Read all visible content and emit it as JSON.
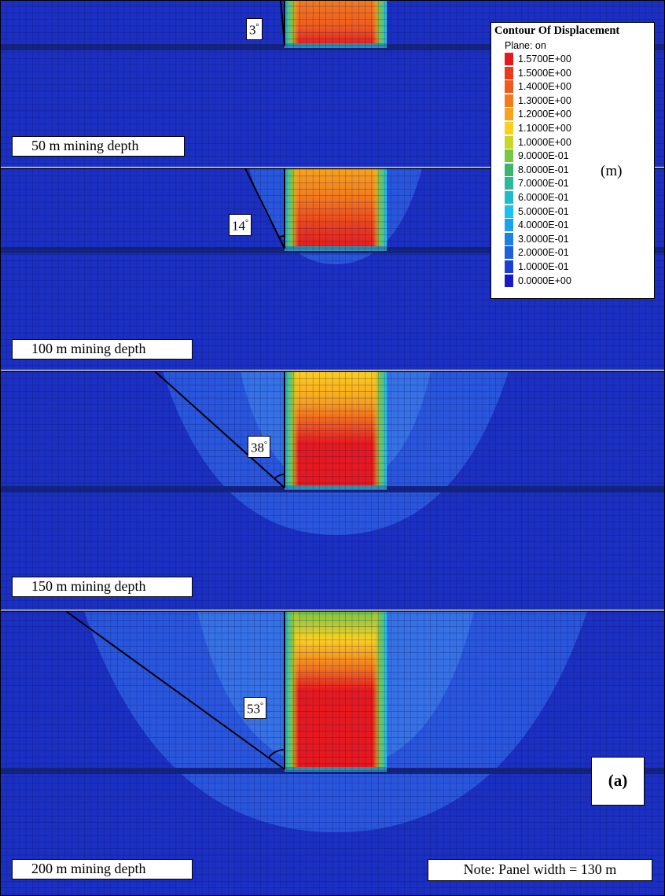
{
  "depth_labels": [
    "50 m mining depth",
    "100 m mining depth",
    "150 m mining depth",
    "200 m mining depth"
  ],
  "angle_labels": [
    "3",
    "14",
    "38",
    "53"
  ],
  "angle_unit": "°",
  "legend": {
    "title": "Contour Of Displacement",
    "plane": "Plane: on",
    "unit": "(m)",
    "entries": [
      {
        "label": "1.5700E+00",
        "color": "#e6191f"
      },
      {
        "label": "1.5000E+00",
        "color": "#ea3a1c"
      },
      {
        "label": "1.4000E+00",
        "color": "#ef5a1e"
      },
      {
        "label": "1.3000E+00",
        "color": "#f37b1e"
      },
      {
        "label": "1.2000E+00",
        "color": "#f7a41d"
      },
      {
        "label": "1.1000E+00",
        "color": "#fccf1f"
      },
      {
        "label": "1.0000E+00",
        "color": "#c8d82a"
      },
      {
        "label": "9.0000E-01",
        "color": "#79c644"
      },
      {
        "label": "8.0000E-01",
        "color": "#3db66d"
      },
      {
        "label": "7.0000E-01",
        "color": "#2bb99a"
      },
      {
        "label": "6.0000E-01",
        "color": "#1ebcc8"
      },
      {
        "label": "5.0000E-01",
        "color": "#19c2ee"
      },
      {
        "label": "4.0000E-01",
        "color": "#1aa3ec"
      },
      {
        "label": "3.0000E-01",
        "color": "#1f80e4"
      },
      {
        "label": "2.0000E-01",
        "color": "#1f5fd9"
      },
      {
        "label": "1.0000E-01",
        "color": "#1a3fd1"
      },
      {
        "label": "0.0000E+00",
        "color": "#1919c6"
      }
    ]
  },
  "panel_tag": "(a)",
  "note": "Note: Panel width = 130 m",
  "colors": {
    "background_blue": "#1b2fc2",
    "mesh_line": "#0b1460",
    "bright_blue": "#2f64e6"
  }
}
